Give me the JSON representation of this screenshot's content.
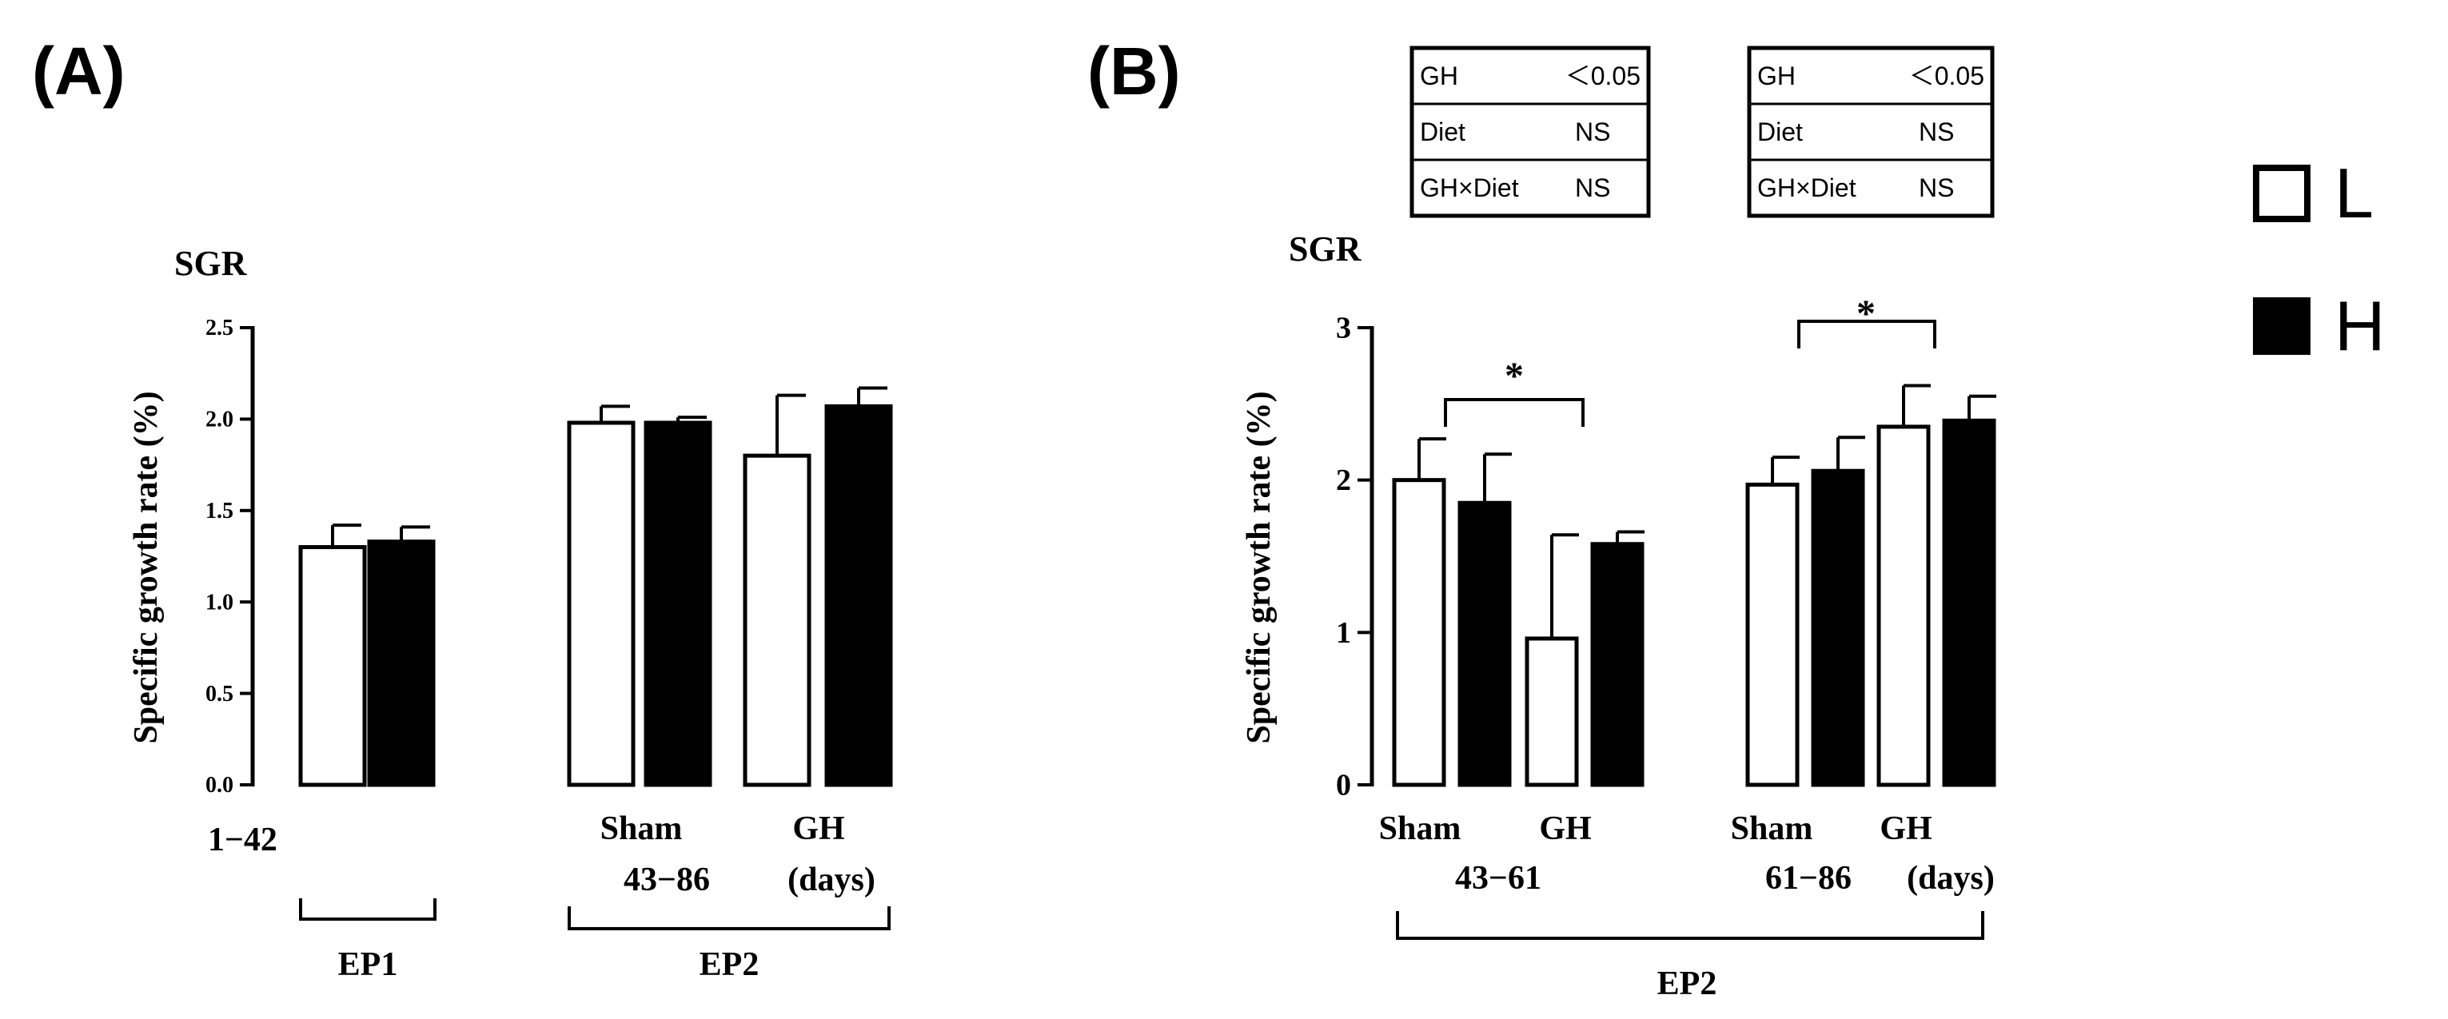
{
  "colors": {
    "ink": "#000000",
    "open_fill": "#ffffff",
    "solid_fill": "#000000"
  },
  "legend": [
    {
      "name": "L",
      "fill": "#ffffff"
    },
    {
      "name": "H",
      "fill": "#000000"
    }
  ],
  "chart_data": [
    {
      "panel": "(A)",
      "type": "bar",
      "title": "SGR",
      "ylabel": "Specific growth rate (%)",
      "ylim": [
        0,
        2.5
      ],
      "yticks": [
        0.0,
        0.5,
        1.0,
        1.5,
        2.0,
        2.5
      ],
      "ytick_labels": [
        "0.0",
        "0.5",
        "1.0",
        "1.5",
        "2.0",
        "2.5"
      ],
      "groups": [
        {
          "x": "EP1 1–42",
          "label": "",
          "bars": [
            {
              "series": "L",
              "value": 1.3,
              "error": 0.12
            },
            {
              "series": "H",
              "value": 1.33,
              "error": 0.08
            }
          ]
        },
        {
          "x": "EP2 43–86 Sham",
          "label": "Sham",
          "bars": [
            {
              "series": "L",
              "value": 1.98,
              "error": 0.09
            },
            {
              "series": "H",
              "value": 1.98,
              "error": 0.03
            }
          ]
        },
        {
          "x": "EP2 43–86 GH",
          "label": "GH",
          "bars": [
            {
              "series": "L",
              "value": 1.8,
              "error": 0.33
            },
            {
              "series": "H",
              "value": 2.07,
              "error": 0.1
            }
          ]
        }
      ],
      "period_labels": [
        "1−42",
        "43−86",
        "(days)"
      ],
      "bracket_labels": [
        "EP1",
        "EP2"
      ]
    },
    {
      "panel": "(B)",
      "type": "bar",
      "title": "SGR",
      "ylabel": "Specific growth rate (%)",
      "ylim": [
        0,
        3
      ],
      "yticks": [
        0,
        1,
        2,
        3
      ],
      "ytick_labels": [
        "0",
        "1",
        "2",
        "3"
      ],
      "groups": [
        {
          "x": "43–61 Sham",
          "label": "Sham",
          "bars": [
            {
              "series": "L",
              "value": 2.0,
              "error": 0.27
            },
            {
              "series": "H",
              "value": 1.85,
              "error": 0.32
            }
          ]
        },
        {
          "x": "43–61 GH",
          "label": "GH",
          "bars": [
            {
              "series": "L",
              "value": 0.96,
              "error": 0.68
            },
            {
              "series": "H",
              "value": 1.58,
              "error": 0.08
            }
          ]
        },
        {
          "x": "61–86 Sham",
          "label": "Sham",
          "bars": [
            {
              "series": "L",
              "value": 1.97,
              "error": 0.18
            },
            {
              "series": "H",
              "value": 2.06,
              "error": 0.22
            }
          ]
        },
        {
          "x": "61–86 GH",
          "label": "GH",
          "bars": [
            {
              "series": "L",
              "value": 2.35,
              "error": 0.27
            },
            {
              "series": "H",
              "value": 2.39,
              "error": 0.16
            }
          ]
        }
      ],
      "significance": [
        {
          "between": [
            "43–61 Sham",
            "43–61 GH"
          ],
          "label": "*"
        },
        {
          "between": [
            "61–86 Sham",
            "61–86 GH"
          ],
          "label": "*"
        }
      ],
      "period_labels": [
        "43−61",
        "61−86",
        "(days)"
      ],
      "bracket_labels": [
        "EP2"
      ],
      "stats_tables": [
        {
          "rows": [
            {
              "factor": "GH",
              "p": "＜0.05"
            },
            {
              "factor": "Diet",
              "p": "NS"
            },
            {
              "factor": "GH×Diet",
              "p": "NS"
            }
          ]
        },
        {
          "rows": [
            {
              "factor": "GH",
              "p": "＜0.05"
            },
            {
              "factor": "Diet",
              "p": "NS"
            },
            {
              "factor": "GH×Diet",
              "p": "NS"
            }
          ]
        }
      ]
    }
  ]
}
